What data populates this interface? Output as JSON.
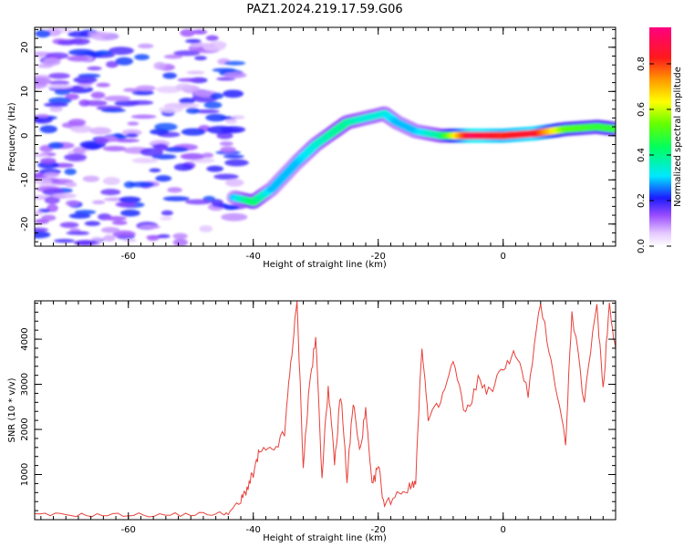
{
  "title": "PAZ1.2024.219.17.59.G06",
  "chart_data": [
    {
      "type": "heatmap",
      "xlabel": "Height of straight line (km)",
      "ylabel": "Frequency (Hz)",
      "xlim": [
        -75,
        18
      ],
      "ylim": [
        -25,
        24.5
      ],
      "xticks": [
        -60,
        -40,
        -20,
        0
      ],
      "yticks": [
        20,
        10,
        0,
        -10,
        -20
      ],
      "colorbar": {
        "label": "Normalized spectral amplitude",
        "range": [
          0,
          0.96
        ],
        "ticks": [
          0.0,
          0.2,
          0.4,
          0.6,
          0.8
        ],
        "colormap": "rainbow (white-violet-blue-cyan-green-yellow-orange-red-magenta)"
      },
      "ridge": {
        "description": "dominant frequency track",
        "points": [
          {
            "x": -43,
            "y": -14
          },
          {
            "x": -40,
            "y": -15
          },
          {
            "x": -37,
            "y": -12
          },
          {
            "x": -33,
            "y": -6
          },
          {
            "x": -30,
            "y": -2
          },
          {
            "x": -27,
            "y": 1
          },
          {
            "x": -25,
            "y": 3
          },
          {
            "x": -22,
            "y": 4
          },
          {
            "x": -19,
            "y": 5
          },
          {
            "x": -17,
            "y": 3
          },
          {
            "x": -14,
            "y": 1
          },
          {
            "x": -10,
            "y": 0
          },
          {
            "x": -5,
            "y": 0
          },
          {
            "x": 0,
            "y": 0
          },
          {
            "x": 5,
            "y": 0.5
          },
          {
            "x": 10,
            "y": 1.5
          },
          {
            "x": 15,
            "y": 2
          },
          {
            "x": 18,
            "y": 1.5
          }
        ],
        "amplitude": [
          0.3,
          0.45,
          0.3,
          0.3,
          0.35,
          0.4,
          0.4,
          0.35,
          0.35,
          0.3,
          0.3,
          0.4,
          0.95,
          0.85,
          0.9,
          0.55,
          0.5,
          0.5
        ]
      },
      "noise_region": {
        "x_range": [
          -75,
          -42
        ],
        "level": 0.2
      },
      "colors": {
        "ridge_peak": "#e01050",
        "noise": "#b070ff"
      }
    },
    {
      "type": "line",
      "xlabel": "Height of straight line (km)",
      "ylabel": "SNR (10 * v/v)",
      "xlim": [
        -75,
        18
      ],
      "ylim": [
        0,
        4850
      ],
      "xticks": [
        -60,
        -40,
        -20,
        0
      ],
      "yticks": [
        1000,
        2000,
        3000,
        4000
      ],
      "series": [
        {
          "color": "#e8403a",
          "points": [
            {
              "x": -75,
              "y": 100
            },
            {
              "x": -70,
              "y": 110
            },
            {
              "x": -65,
              "y": 100
            },
            {
              "x": -60,
              "y": 110
            },
            {
              "x": -55,
              "y": 100
            },
            {
              "x": -50,
              "y": 120
            },
            {
              "x": -46,
              "y": 130
            },
            {
              "x": -44,
              "y": 150
            },
            {
              "x": -42,
              "y": 400
            },
            {
              "x": -41,
              "y": 700
            },
            {
              "x": -40,
              "y": 1000
            },
            {
              "x": -39,
              "y": 1500
            },
            {
              "x": -37,
              "y": 1500
            },
            {
              "x": -35,
              "y": 1900
            },
            {
              "x": -34,
              "y": 3500
            },
            {
              "x": -33,
              "y": 4800
            },
            {
              "x": -32,
              "y": 1200
            },
            {
              "x": -31,
              "y": 3000
            },
            {
              "x": -30,
              "y": 4000
            },
            {
              "x": -29,
              "y": 1000
            },
            {
              "x": -28,
              "y": 3000
            },
            {
              "x": -27,
              "y": 1200
            },
            {
              "x": -26,
              "y": 2800
            },
            {
              "x": -25,
              "y": 900
            },
            {
              "x": -24,
              "y": 2600
            },
            {
              "x": -23,
              "y": 1500
            },
            {
              "x": -22,
              "y": 2400
            },
            {
              "x": -21,
              "y": 700
            },
            {
              "x": -20,
              "y": 1200
            },
            {
              "x": -19,
              "y": 300
            },
            {
              "x": -17,
              "y": 600
            },
            {
              "x": -15,
              "y": 700
            },
            {
              "x": -14,
              "y": 900
            },
            {
              "x": -13,
              "y": 3900
            },
            {
              "x": -12,
              "y": 2200
            },
            {
              "x": -10,
              "y": 2600
            },
            {
              "x": -8,
              "y": 3500
            },
            {
              "x": -6,
              "y": 2300
            },
            {
              "x": -4,
              "y": 3100
            },
            {
              "x": -2,
              "y": 2800
            },
            {
              "x": 0,
              "y": 3400
            },
            {
              "x": 2,
              "y": 3700
            },
            {
              "x": 4,
              "y": 2800
            },
            {
              "x": 6,
              "y": 4800
            },
            {
              "x": 8,
              "y": 3300
            },
            {
              "x": 10,
              "y": 1700
            },
            {
              "x": 11,
              "y": 4600
            },
            {
              "x": 13,
              "y": 2600
            },
            {
              "x": 15,
              "y": 4800
            },
            {
              "x": 16,
              "y": 2900
            },
            {
              "x": 17,
              "y": 4800
            },
            {
              "x": 18,
              "y": 3800
            }
          ]
        }
      ]
    }
  ]
}
